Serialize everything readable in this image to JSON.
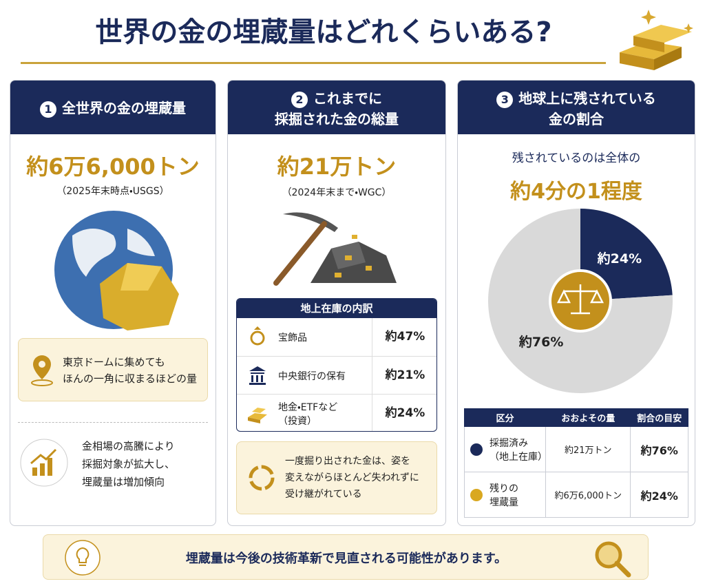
{
  "header": {
    "title": "世界の金の埋蔵量はどれくらいある?"
  },
  "panels": [
    {
      "number": "1",
      "title": [
        "全世界の金の埋蔵量"
      ],
      "amount": "約6万6,000トン",
      "note": "（2025年末時点・USGS）",
      "callout": [
        "東京ドームに集めても",
        "ほんの一角に収まるほどの量"
      ],
      "point": [
        "金相場の高騰により",
        "採掘対象が拡大し、",
        "埋蔵量は増加傾向"
      ]
    },
    {
      "number": "2",
      "title": [
        "これまでに",
        "採掘された金の総量"
      ],
      "amount": "約21万トン",
      "note": "（2024年末まで・WGC）",
      "breakdown": {
        "title": "地上在庫の内訳",
        "rows": [
          [
            [
              "宝飾品"
            ],
            "約47%"
          ],
          [
            [
              "中央銀行の保有"
            ],
            "約21%"
          ],
          [
            [
              "地金・ETFなど",
              "（投資）"
            ],
            "約24%"
          ]
        ]
      },
      "callout": [
        "一度掘り出された金は、姿を",
        "変えながらほとんど失われずに",
        "受け継がれている"
      ]
    },
    {
      "number": "3",
      "title": [
        "地球上に残されている",
        "金の割合"
      ],
      "lead": "残されているのは全体の",
      "highlight": "約4分の1程度",
      "table": {
        "headers": [
          "区分",
          "おおよその量",
          "割合の目安"
        ],
        "rows": [
          [
            [
              "採掘済み",
              "（地上在庫）"
            ],
            "約21万トン",
            "約76%"
          ],
          [
            [
              "残りの",
              "埋蔵量"
            ],
            "約6万6,000トン",
            "約24%"
          ]
        ]
      }
    }
  ],
  "chart_data": {
    "type": "pie",
    "values": [
      24,
      76
    ],
    "value_labels": [
      "約24%",
      "約76%"
    ],
    "colors": [
      "#1b2a5a",
      "#d9d9d9"
    ]
  },
  "footer": {
    "text": "埋蔵量は今後の技術革新で見直される可能性があります。"
  }
}
